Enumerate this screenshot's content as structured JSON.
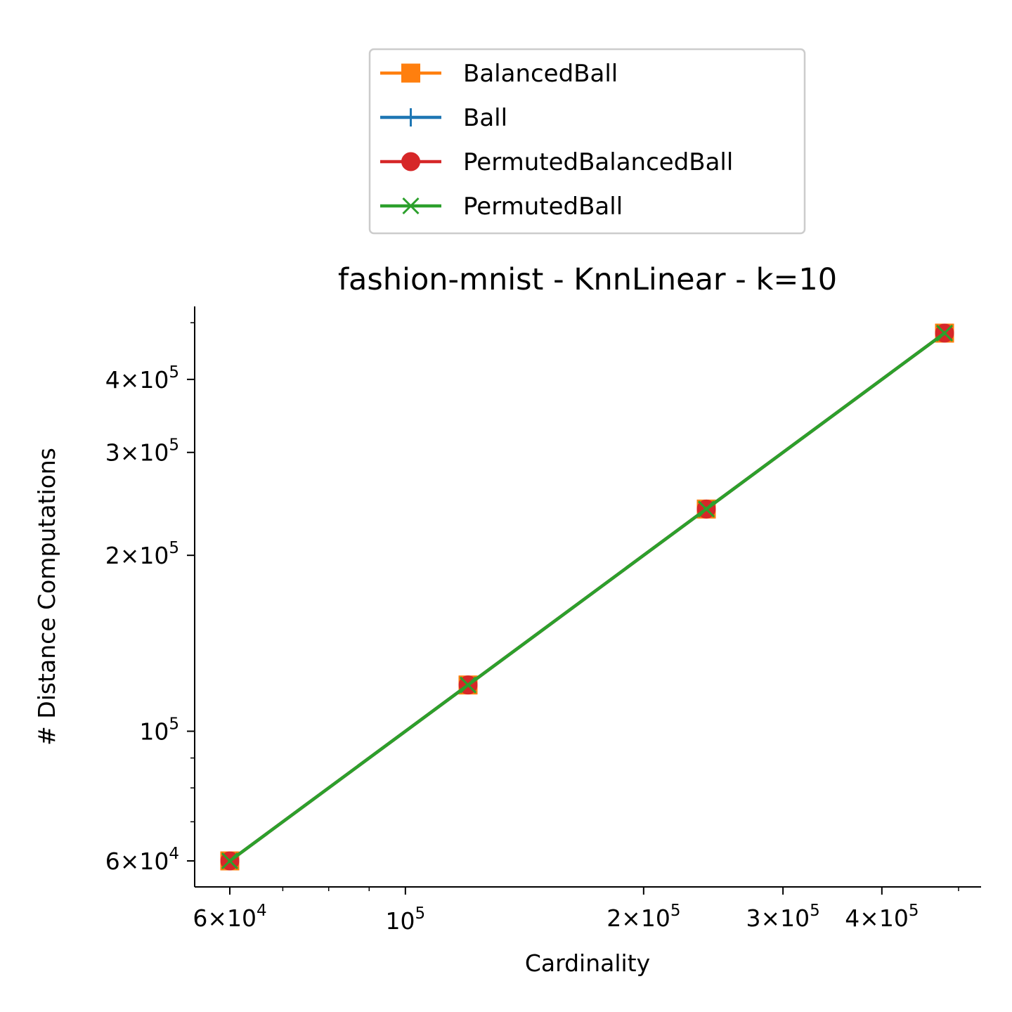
{
  "chart_data": {
    "type": "line",
    "title": "fashion-mnist - KnnLinear - k=10",
    "xlabel": "Cardinality",
    "ylabel": "# Distance Computations",
    "xscale": "log",
    "yscale": "log",
    "xlim": [
      56000,
      520000
    ],
    "ylim": [
      54000,
      530000
    ],
    "x_ticks": [
      {
        "value": 60000,
        "base": "6×10",
        "exp": "4"
      },
      {
        "value": 100000,
        "base": "10",
        "exp": "5"
      },
      {
        "value": 200000,
        "base": "2×10",
        "exp": "5"
      },
      {
        "value": 300000,
        "base": "3×10",
        "exp": "5"
      },
      {
        "value": 400000,
        "base": "4×10",
        "exp": "5"
      }
    ],
    "y_ticks": [
      {
        "value": 60000,
        "base": "6×10",
        "exp": "4"
      },
      {
        "value": 100000,
        "base": "10",
        "exp": "5"
      },
      {
        "value": 200000,
        "base": "2×10",
        "exp": "5"
      },
      {
        "value": 300000,
        "base": "3×10",
        "exp": "5"
      },
      {
        "value": 400000,
        "base": "4×10",
        "exp": "5"
      }
    ],
    "x_minor_ticks": [
      70000,
      80000,
      90000,
      500000
    ],
    "y_minor_ticks": [
      70000,
      80000,
      90000,
      500000
    ],
    "x": [
      60000,
      120000,
      240000,
      480000
    ],
    "series": [
      {
        "name": "BalancedBall",
        "color": "#ff7f0e",
        "marker": "square",
        "values": [
          60000,
          120000,
          240000,
          480000
        ]
      },
      {
        "name": "Ball",
        "color": "#1f77b4",
        "marker": "plus",
        "values": [
          60000,
          120000,
          240000,
          480000
        ]
      },
      {
        "name": "PermutedBalancedBall",
        "color": "#d62728",
        "marker": "circle",
        "values": [
          60000,
          120000,
          240000,
          480000
        ]
      },
      {
        "name": "PermutedBall",
        "color": "#2ca02c",
        "marker": "x",
        "values": [
          60000,
          120000,
          240000,
          480000
        ]
      }
    ],
    "legend_position": "top-center",
    "grid": false
  }
}
